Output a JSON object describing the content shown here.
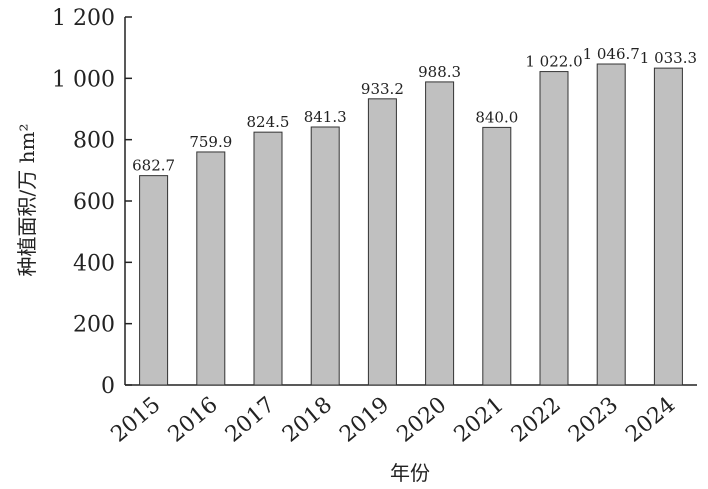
{
  "chart_data": {
    "type": "bar",
    "categories": [
      "2015",
      "2016",
      "2017",
      "2018",
      "2019",
      "2020",
      "2021",
      "2022",
      "2023",
      "2024"
    ],
    "values": [
      682.7,
      759.9,
      824.5,
      841.3,
      933.2,
      988.3,
      840.0,
      1022.0,
      1046.7,
      1033.3
    ],
    "data_labels": [
      "682.7",
      "759.9",
      "824.5",
      "841.3",
      "933.2",
      "988.3",
      "840.0",
      "1 022.0",
      "1 046.7",
      "1 033.3"
    ],
    "title": "",
    "xlabel": "年份",
    "ylabel": "种植面积/万 hm²",
    "ylim": [
      0,
      1200
    ],
    "yticks": [
      0,
      200,
      400,
      600,
      800,
      1000,
      1200
    ],
    "ytick_labels": [
      "0",
      "200",
      "400",
      "600",
      "800",
      "1 000",
      "1 200"
    ],
    "grid": false,
    "bar_color": "#c0c0c0",
    "bar_edge_color": "#333333"
  }
}
